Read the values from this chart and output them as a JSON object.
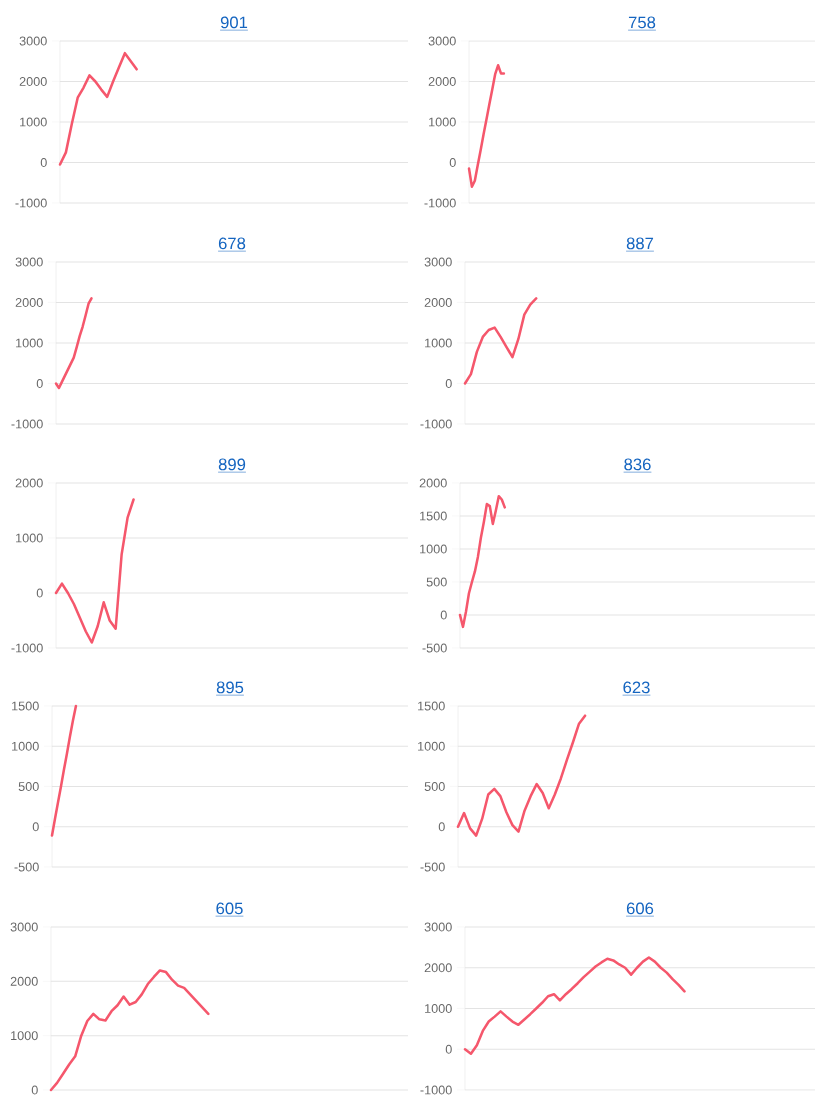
{
  "chart_data": [
    {
      "type": "line",
      "title": "901",
      "color": "#f5576c",
      "grid": "y",
      "ylim": [
        -1000,
        3000
      ],
      "yticks": [
        -1000,
        0,
        1000,
        2000,
        3000
      ],
      "categories": [
        null,
        null,
        null,
        null,
        null,
        null,
        null,
        null,
        null,
        null,
        null,
        null,
        null,
        null,
        null,
        null,
        null,
        null,
        null,
        null,
        null,
        null,
        null,
        null,
        null,
        null,
        null,
        null,
        null,
        null,
        null,
        null,
        null,
        null,
        null,
        null,
        null,
        null,
        null,
        null,
        null,
        null,
        null,
        null,
        null,
        null,
        null,
        null,
        null,
        null,
        null,
        null,
        null,
        null,
        null,
        null,
        null,
        null,
        null,
        null
      ],
      "values": [
        -50,
        250,
        950,
        1600,
        1850,
        2150,
        2000,
        1800,
        1620,
        2000,
        2350,
        2700,
        2500,
        2300,
        null,
        null,
        null,
        null,
        null,
        null,
        null,
        null,
        null,
        null,
        null,
        null,
        null,
        null,
        null,
        null,
        null,
        null,
        null,
        null,
        null,
        null,
        null,
        null,
        null,
        null,
        null,
        null,
        null,
        null,
        null,
        null,
        null,
        null,
        null,
        null,
        null,
        null,
        null,
        null,
        null,
        null,
        null,
        null,
        null,
        null
      ]
    },
    {
      "type": "line",
      "title": "758",
      "color": "#f5576c",
      "grid": "y",
      "ylim": [
        -1000,
        3000
      ],
      "yticks": [
        -1000,
        0,
        1000,
        2000,
        3000
      ],
      "categories": [
        null,
        null,
        null,
        null,
        null,
        null,
        null,
        null,
        null,
        null,
        null,
        null,
        null,
        null,
        null,
        null,
        null,
        null,
        null,
        null,
        null,
        null,
        null,
        null,
        null,
        null,
        null,
        null,
        null,
        null,
        null,
        null,
        null,
        null,
        null,
        null,
        null,
        null,
        null,
        null,
        null,
        null,
        null,
        null,
        null,
        null,
        null,
        null,
        null,
        null,
        null,
        null,
        null,
        null,
        null,
        null,
        null,
        null,
        null,
        null,
        null,
        null,
        null,
        null,
        null,
        null,
        null,
        null,
        null,
        null,
        null,
        null,
        null,
        null,
        null,
        null,
        null,
        null,
        null,
        null,
        null,
        null,
        null,
        null,
        null,
        null,
        null,
        null,
        null,
        null,
        null,
        null,
        null,
        null,
        null,
        null,
        null,
        null,
        null,
        null,
        null,
        null,
        null,
        null,
        null,
        null,
        null,
        null,
        null,
        null,
        null,
        null,
        null,
        null,
        null,
        null,
        null,
        null,
        null,
        null
      ],
      "values": [
        -150,
        -600,
        -450,
        -70,
        300,
        690,
        1060,
        1440,
        1800,
        2180,
        2400,
        2200,
        2200,
        null,
        null,
        null,
        null,
        null,
        null,
        null,
        null,
        null,
        null,
        null,
        null,
        null,
        null,
        null,
        null,
        null,
        null,
        null,
        null,
        null,
        null,
        null,
        null,
        null,
        null,
        null,
        null,
        null,
        null,
        null,
        null,
        null,
        null,
        null,
        null,
        null,
        null,
        null,
        null,
        null,
        null,
        null,
        null,
        null,
        null,
        null,
        null,
        null,
        null,
        null,
        null,
        null,
        null,
        null,
        null,
        null,
        null,
        null,
        null,
        null,
        null,
        null,
        null,
        null,
        null,
        null,
        null,
        null,
        null,
        null,
        null,
        null,
        null,
        null,
        null,
        null,
        null,
        null,
        null,
        null,
        null,
        null,
        null,
        null,
        null,
        null,
        null,
        null,
        null,
        null,
        null,
        null,
        null,
        null,
        null,
        null,
        null,
        null,
        null,
        null,
        null,
        null,
        null,
        null,
        null,
        null
      ]
    },
    {
      "type": "line",
      "title": "678",
      "color": "#f5576c",
      "grid": "y",
      "ylim": [
        -1000,
        3000
      ],
      "yticks": [
        -1000,
        0,
        1000,
        2000,
        3000
      ],
      "categories": [
        null,
        null,
        null,
        null,
        null,
        null,
        null,
        null,
        null,
        null,
        null,
        null,
        null,
        null,
        null,
        null,
        null,
        null,
        null,
        null,
        null,
        null,
        null,
        null,
        null,
        null,
        null,
        null,
        null,
        null,
        null,
        null,
        null,
        null,
        null,
        null,
        null,
        null,
        null,
        null,
        null,
        null,
        null,
        null,
        null,
        null,
        null,
        null,
        null,
        null,
        null,
        null,
        null,
        null,
        null,
        null,
        null,
        null,
        null,
        null,
        null,
        null,
        null,
        null,
        null,
        null,
        null,
        null,
        null,
        null,
        null,
        null,
        null,
        null,
        null,
        null,
        null,
        null,
        null,
        null,
        null,
        null,
        null,
        null,
        null,
        null,
        null,
        null,
        null,
        null,
        null,
        null,
        null,
        null,
        null,
        null,
        null,
        null,
        null,
        null,
        null,
        null,
        null,
        null,
        null,
        null,
        null,
        null,
        null,
        null,
        null,
        null,
        null,
        null,
        null,
        null,
        null,
        null,
        null,
        null
      ],
      "values": [
        0,
        -110,
        40,
        190,
        340,
        490,
        640,
        900,
        1170,
        1400,
        1680,
        1970,
        2100,
        null,
        null,
        null,
        null,
        null,
        null,
        null,
        null,
        null,
        null,
        null,
        null,
        null,
        null,
        null,
        null,
        null,
        null,
        null,
        null,
        null,
        null,
        null,
        null,
        null,
        null,
        null,
        null,
        null,
        null,
        null,
        null,
        null,
        null,
        null,
        null,
        null,
        null,
        null,
        null,
        null,
        null,
        null,
        null,
        null,
        null,
        null,
        null,
        null,
        null,
        null,
        null,
        null,
        null,
        null,
        null,
        null,
        null,
        null,
        null,
        null,
        null,
        null,
        null,
        null,
        null,
        null,
        null,
        null,
        null,
        null,
        null,
        null,
        null,
        null,
        null,
        null,
        null,
        null,
        null,
        null,
        null,
        null,
        null,
        null,
        null,
        null,
        null,
        null,
        null,
        null,
        null,
        null,
        null,
        null,
        null,
        null,
        null,
        null,
        null,
        null,
        null,
        null,
        null,
        null,
        null,
        null
      ]
    },
    {
      "type": "line",
      "title": "887",
      "color": "#f5576c",
      "grid": "y",
      "ylim": [
        -1000,
        3000
      ],
      "yticks": [
        -1000,
        0,
        1000,
        2000,
        3000
      ],
      "categories": [
        null,
        null,
        null,
        null,
        null,
        null,
        null,
        null,
        null,
        null,
        null,
        null,
        null,
        null,
        null,
        null,
        null,
        null,
        null,
        null,
        null,
        null,
        null,
        null,
        null,
        null,
        null,
        null,
        null,
        null,
        null,
        null,
        null,
        null,
        null,
        null,
        null,
        null,
        null,
        null,
        null,
        null,
        null,
        null,
        null,
        null,
        null,
        null,
        null,
        null,
        null,
        null,
        null,
        null,
        null,
        null,
        null,
        null,
        null,
        null
      ],
      "values": [
        0,
        230,
        780,
        1150,
        1320,
        1380,
        1150,
        900,
        650,
        1100,
        1700,
        1950,
        2100,
        null,
        null,
        null,
        null,
        null,
        null,
        null,
        null,
        null,
        null,
        null,
        null,
        null,
        null,
        null,
        null,
        null,
        null,
        null,
        null,
        null,
        null,
        null,
        null,
        null,
        null,
        null,
        null,
        null,
        null,
        null,
        null,
        null,
        null,
        null,
        null,
        null,
        null,
        null,
        null,
        null,
        null,
        null,
        null,
        null,
        null,
        null
      ]
    },
    {
      "type": "line",
      "title": "899",
      "color": "#f5576c",
      "grid": "y",
      "ylim": [
        -1000,
        2000
      ],
      "yticks": [
        -1000,
        0,
        1000,
        2000
      ],
      "categories": [
        null,
        null,
        null,
        null,
        null,
        null,
        null,
        null,
        null,
        null,
        null,
        null,
        null,
        null,
        null,
        null,
        null,
        null,
        null,
        null,
        null,
        null,
        null,
        null,
        null,
        null,
        null,
        null,
        null,
        null,
        null,
        null,
        null,
        null,
        null,
        null,
        null,
        null,
        null,
        null,
        null,
        null,
        null,
        null,
        null,
        null,
        null,
        null,
        null,
        null,
        null,
        null,
        null,
        null,
        null,
        null,
        null,
        null,
        null,
        null
      ],
      "values": [
        0,
        170,
        0,
        -200,
        -450,
        -700,
        -900,
        -600,
        -170,
        -500,
        -650,
        700,
        1370,
        1700,
        null,
        null,
        null,
        null,
        null,
        null,
        null,
        null,
        null,
        null,
        null,
        null,
        null,
        null,
        null,
        null,
        null,
        null,
        null,
        null,
        null,
        null,
        null,
        null,
        null,
        null,
        null,
        null,
        null,
        null,
        null,
        null,
        null,
        null,
        null,
        null,
        null,
        null,
        null,
        null,
        null,
        null,
        null,
        null,
        null,
        null
      ]
    },
    {
      "type": "line",
      "title": "836",
      "color": "#f5576c",
      "grid": "y",
      "ylim": [
        -500,
        2000
      ],
      "yticks": [
        -500,
        0,
        500,
        1000,
        1500,
        2000
      ],
      "categories": [
        null,
        null,
        null,
        null,
        null,
        null,
        null,
        null,
        null,
        null,
        null,
        null,
        null,
        null,
        null,
        null,
        null,
        null,
        null,
        null,
        null,
        null,
        null,
        null,
        null,
        null,
        null,
        null,
        null,
        null,
        null,
        null,
        null,
        null,
        null,
        null,
        null,
        null,
        null,
        null,
        null,
        null,
        null,
        null,
        null,
        null,
        null,
        null,
        null,
        null,
        null,
        null,
        null,
        null,
        null,
        null,
        null,
        null,
        null,
        null,
        null,
        null,
        null,
        null,
        null,
        null,
        null,
        null,
        null,
        null,
        null,
        null,
        null,
        null,
        null,
        null,
        null,
        null,
        null,
        null,
        null,
        null,
        null,
        null,
        null,
        null,
        null,
        null,
        null,
        null,
        null,
        null,
        null,
        null,
        null,
        null,
        null,
        null,
        null,
        null,
        null,
        null,
        null,
        null,
        null,
        null,
        null,
        null,
        null,
        null,
        null,
        null,
        null,
        null,
        null,
        null,
        null,
        null,
        null,
        null
      ],
      "values": [
        0,
        -180,
        50,
        330,
        500,
        660,
        880,
        1170,
        1410,
        1680,
        1650,
        1380,
        1580,
        1800,
        1750,
        1630,
        null,
        null,
        null,
        null,
        null,
        null,
        null,
        null,
        null,
        null,
        null,
        null,
        null,
        null,
        null,
        null,
        null,
        null,
        null,
        null,
        null,
        null,
        null,
        null,
        null,
        null,
        null,
        null,
        null,
        null,
        null,
        null,
        null,
        null,
        null,
        null,
        null,
        null,
        null,
        null,
        null,
        null,
        null,
        null,
        null,
        null,
        null,
        null,
        null,
        null,
        null,
        null,
        null,
        null,
        null,
        null,
        null,
        null,
        null,
        null,
        null,
        null,
        null,
        null,
        null,
        null,
        null,
        null,
        null,
        null,
        null,
        null,
        null,
        null,
        null,
        null,
        null,
        null,
        null,
        null,
        null,
        null,
        null,
        null,
        null,
        null,
        null,
        null,
        null,
        null,
        null,
        null,
        null,
        null,
        null,
        null,
        null,
        null,
        null,
        null,
        null,
        null,
        null,
        null
      ]
    },
    {
      "type": "line",
      "title": "895",
      "color": "#f5576c",
      "grid": "y",
      "ylim": [
        -500,
        1500
      ],
      "yticks": [
        -500,
        0,
        500,
        1000,
        1500
      ],
      "categories": [
        null,
        null,
        null,
        null,
        null,
        null,
        null,
        null,
        null,
        null,
        null,
        null,
        null,
        null,
        null,
        null,
        null,
        null,
        null,
        null,
        null,
        null,
        null,
        null,
        null,
        null,
        null,
        null,
        null,
        null,
        null,
        null,
        null,
        null,
        null,
        null,
        null,
        null,
        null,
        null,
        null,
        null,
        null,
        null,
        null,
        null,
        null,
        null,
        null,
        null,
        null,
        null,
        null,
        null,
        null,
        null,
        null,
        null,
        null,
        null,
        null,
        null,
        null,
        null,
        null,
        null,
        null,
        null,
        null,
        null,
        null,
        null,
        null,
        null,
        null,
        null,
        null,
        null,
        null,
        null,
        null,
        null,
        null,
        null,
        null,
        null,
        null,
        null,
        null,
        null,
        null,
        null,
        null,
        null,
        null,
        null,
        null,
        null,
        null,
        null,
        null,
        null,
        null,
        null,
        null,
        null,
        null,
        null,
        null,
        null,
        null,
        null,
        null,
        null,
        null,
        null,
        null,
        null,
        null,
        null
      ],
      "values": [
        -110,
        100,
        300,
        500,
        710,
        910,
        1120,
        1320,
        1500,
        null,
        null,
        null,
        null,
        null,
        null,
        null,
        null,
        null,
        null,
        null,
        null,
        null,
        null,
        null,
        null,
        null,
        null,
        null,
        null,
        null,
        null,
        null,
        null,
        null,
        null,
        null,
        null,
        null,
        null,
        null,
        null,
        null,
        null,
        null,
        null,
        null,
        null,
        null,
        null,
        null,
        null,
        null,
        null,
        null,
        null,
        null,
        null,
        null,
        null,
        null,
        null,
        null,
        null,
        null,
        null,
        null,
        null,
        null,
        null,
        null,
        null,
        null,
        null,
        null,
        null,
        null,
        null,
        null,
        null,
        null,
        null,
        null,
        null,
        null,
        null,
        null,
        null,
        null,
        null,
        null,
        null,
        null,
        null,
        null,
        null,
        null,
        null,
        null,
        null,
        null,
        null,
        null,
        null,
        null,
        null,
        null,
        null,
        null,
        null,
        null,
        null,
        null,
        null,
        null,
        null,
        null,
        null,
        null,
        null,
        null
      ]
    },
    {
      "type": "line",
      "title": "623",
      "color": "#f5576c",
      "grid": "y",
      "ylim": [
        -500,
        1500
      ],
      "yticks": [
        -500,
        0,
        500,
        1000,
        1500
      ],
      "categories": [
        null,
        null,
        null,
        null,
        null,
        null,
        null,
        null,
        null,
        null,
        null,
        null,
        null,
        null,
        null,
        null,
        null,
        null,
        null,
        null,
        null,
        null,
        null,
        null,
        null,
        null,
        null,
        null,
        null,
        null,
        null,
        null,
        null,
        null,
        null,
        null,
        null,
        null,
        null,
        null,
        null,
        null,
        null,
        null,
        null,
        null,
        null,
        null,
        null,
        null,
        null,
        null,
        null,
        null,
        null,
        null,
        null,
        null,
        null,
        null
      ],
      "values": [
        0,
        170,
        -20,
        -110,
        100,
        400,
        470,
        380,
        180,
        20,
        -60,
        200,
        380,
        530,
        420,
        230,
        400,
        600,
        830,
        1050,
        1280,
        1380,
        null,
        null,
        null,
        null,
        null,
        null,
        null,
        null,
        null,
        null,
        null,
        null,
        null,
        null,
        null,
        null,
        null,
        null,
        null,
        null,
        null,
        null,
        null,
        null,
        null,
        null,
        null,
        null,
        null,
        null,
        null,
        null,
        null,
        null,
        null,
        null,
        null,
        null
      ]
    },
    {
      "type": "line",
      "title": "605",
      "color": "#f5576c",
      "grid": "y",
      "ylim": [
        0,
        3000
      ],
      "yticks": [
        0,
        1000,
        2000,
        3000
      ],
      "categories": [
        null,
        null,
        null,
        null,
        null,
        null,
        null,
        null,
        null,
        null,
        null,
        null,
        null,
        null,
        null,
        null,
        null,
        null,
        null,
        null,
        null,
        null,
        null,
        null,
        null,
        null,
        null,
        null,
        null,
        null,
        null,
        null,
        null,
        null,
        null,
        null,
        null,
        null,
        null,
        null,
        null,
        null,
        null,
        null,
        null,
        null,
        null,
        null,
        null,
        null,
        null,
        null,
        null,
        null,
        null,
        null,
        null,
        null,
        null,
        null
      ],
      "values": [
        0,
        130,
        300,
        470,
        620,
        1000,
        1270,
        1400,
        1300,
        1280,
        1450,
        1560,
        1720,
        1570,
        1620,
        1760,
        1950,
        2080,
        2200,
        2170,
        2030,
        1920,
        1880,
        1760,
        1640,
        1520,
        1400,
        null,
        null,
        null,
        null,
        null,
        null,
        null,
        null,
        null,
        null,
        null,
        null,
        null,
        null,
        null,
        null,
        null,
        null,
        null,
        null,
        null,
        null,
        null,
        null,
        null,
        null,
        null,
        null,
        null,
        null,
        null,
        null,
        null
      ]
    },
    {
      "type": "line",
      "title": "606",
      "color": "#f5576c",
      "grid": "y",
      "ylim": [
        -1000,
        3000
      ],
      "yticks": [
        -1000,
        0,
        1000,
        2000,
        3000
      ],
      "categories": [
        null,
        null,
        null,
        null,
        null,
        null,
        null,
        null,
        null,
        null,
        null,
        null,
        null,
        null,
        null,
        null,
        null,
        null,
        null,
        null,
        null,
        null,
        null,
        null,
        null,
        null,
        null,
        null,
        null,
        null,
        null,
        null,
        null,
        null,
        null,
        null,
        null,
        null,
        null,
        null,
        null,
        null,
        null,
        null,
        null,
        null,
        null,
        null,
        null,
        null,
        null,
        null,
        null,
        null,
        null,
        null,
        null,
        null,
        null,
        null
      ],
      "values": [
        0,
        -110,
        100,
        450,
        680,
        800,
        930,
        800,
        680,
        600,
        730,
        860,
        1000,
        1140,
        1300,
        1350,
        1200,
        1350,
        1480,
        1620,
        1770,
        1900,
        2030,
        2130,
        2220,
        2180,
        2080,
        2000,
        1830,
        2000,
        2150,
        2250,
        2150,
        2000,
        1880,
        1720,
        1580,
        1420,
        null,
        null,
        null,
        null,
        null,
        null,
        null,
        null,
        null,
        null,
        null,
        null,
        null,
        null,
        null,
        null,
        null,
        null,
        null,
        null,
        null,
        null
      ]
    }
  ]
}
